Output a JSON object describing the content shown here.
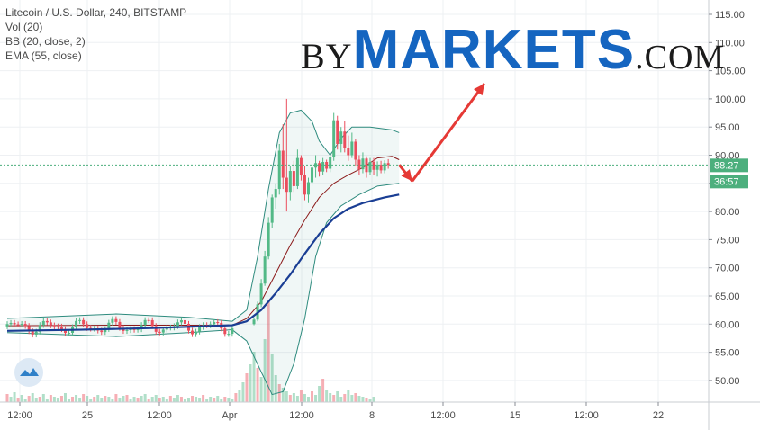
{
  "header": {
    "symbol_line": "Litecoin / U.S. Dollar, 240, BITSTAMP",
    "volume_line": "Vol (20)",
    "bollinger_line": "BB (20, close, 2)",
    "ema_line": "EMA (55, close)"
  },
  "watermark": {
    "by": "BY",
    "markets": "MARKETS",
    "com": ".COM"
  },
  "chart_data": {
    "type": "candlestick",
    "y_axis": {
      "range": [
        46.5,
        116
      ],
      "ticks": [
        115,
        110,
        105,
        100,
        95,
        90,
        85,
        80,
        75,
        70,
        65,
        60,
        55,
        50
      ],
      "tick_labels": [
        "115.00",
        "110.00",
        "105.00",
        "100.00",
        "95.00",
        "90.00",
        "85.00",
        "80.00",
        "75.00",
        "70.00",
        "65.00",
        "60.00",
        "55.00",
        "50.00"
      ]
    },
    "x_axis": {
      "tick_labels": [
        "12:00",
        "25",
        "12:00",
        "Apr",
        "12:00",
        "8",
        "12:00",
        "15",
        "12:00",
        "22"
      ]
    },
    "current_price": {
      "value": 88.27,
      "label": "88.27",
      "countdown": "36:57"
    },
    "colors": {
      "up": "#53b987",
      "down": "#eb4d5c",
      "ema": "#1a3e94",
      "basis": "#8b1a1a",
      "band": "#2e8b7e",
      "arrow": "#e53935",
      "price_tag": "#4caf7d"
    },
    "forecast_arrow": {
      "from": {
        "x": 108,
        "y": 88.3
      },
      "via": {
        "x": 111.6,
        "y": 85.4
      },
      "to": {
        "x": 131.5,
        "y": 102.7
      }
    },
    "pre_rally": [
      {
        "x": 2,
        "c": 59.8
      },
      {
        "x": 8,
        "c": 58.9
      },
      {
        "x": 14,
        "c": 60.2
      },
      {
        "x": 20,
        "c": 59.1
      },
      {
        "x": 26,
        "c": 59.9
      },
      {
        "x": 32,
        "c": 58.3
      },
      {
        "x": 38,
        "c": 59.5
      },
      {
        "x": 44,
        "c": 60.7
      },
      {
        "x": 50,
        "c": 60.0
      },
      {
        "x": 56,
        "c": 59.6
      },
      {
        "x": 62,
        "c": 60.3
      }
    ],
    "rally_candles": [
      {
        "o": 60.0,
        "h": 61.2,
        "l": 59.8,
        "c": 60.8
      },
      {
        "o": 60.8,
        "h": 64.0,
        "l": 60.5,
        "c": 63.5
      },
      {
        "o": 63.5,
        "h": 68.0,
        "l": 63.0,
        "c": 67.2
      },
      {
        "o": 67.2,
        "h": 73.0,
        "l": 66.8,
        "c": 72.0
      },
      {
        "o": 72.0,
        "h": 79.0,
        "l": 71.5,
        "c": 78.0
      },
      {
        "o": 78.0,
        "h": 83.0,
        "l": 77.0,
        "c": 82.5
      },
      {
        "o": 82.5,
        "h": 85.0,
        "l": 80.5,
        "c": 84.0
      },
      {
        "o": 84.0,
        "h": 92.0,
        "l": 83.0,
        "c": 90.8
      },
      {
        "o": 90.8,
        "h": 95.5,
        "l": 84.0,
        "c": 86.0
      },
      {
        "o": 86.0,
        "h": 100.0,
        "l": 80.0,
        "c": 83.5
      },
      {
        "o": 83.5,
        "h": 88.0,
        "l": 82.0,
        "c": 87.2
      },
      {
        "o": 87.2,
        "h": 89.0,
        "l": 83.5,
        "c": 84.5
      },
      {
        "o": 84.5,
        "h": 91.0,
        "l": 84.0,
        "c": 89.5
      },
      {
        "o": 89.5,
        "h": 90.0,
        "l": 85.5,
        "c": 86.5
      },
      {
        "o": 86.5,
        "h": 88.0,
        "l": 82.0,
        "c": 83.0
      },
      {
        "o": 83.0,
        "h": 86.0,
        "l": 81.5,
        "c": 85.2
      },
      {
        "o": 85.2,
        "h": 88.5,
        "l": 84.5,
        "c": 87.8
      },
      {
        "o": 87.8,
        "h": 90.0,
        "l": 86.0,
        "c": 88.6
      },
      {
        "o": 88.6,
        "h": 89.0,
        "l": 86.2,
        "c": 87.1
      },
      {
        "o": 87.1,
        "h": 89.5,
        "l": 86.5,
        "c": 88.8
      },
      {
        "o": 88.8,
        "h": 89.2,
        "l": 87.0,
        "c": 87.6
      },
      {
        "o": 87.6,
        "h": 90.5,
        "l": 87.0,
        "c": 89.6
      },
      {
        "o": 89.6,
        "h": 97.5,
        "l": 89.0,
        "c": 96.2
      },
      {
        "o": 96.2,
        "h": 97.0,
        "l": 91.0,
        "c": 92.0
      },
      {
        "o": 92.0,
        "h": 95.0,
        "l": 90.5,
        "c": 94.2
      },
      {
        "o": 94.2,
        "h": 96.0,
        "l": 90.5,
        "c": 91.3
      },
      {
        "o": 91.3,
        "h": 93.5,
        "l": 89.0,
        "c": 90.0
      },
      {
        "o": 90.0,
        "h": 94.0,
        "l": 89.5,
        "c": 92.4
      },
      {
        "o": 92.4,
        "h": 92.8,
        "l": 88.0,
        "c": 89.2
      },
      {
        "o": 89.2,
        "h": 90.0,
        "l": 86.5,
        "c": 87.5
      },
      {
        "o": 87.5,
        "h": 90.5,
        "l": 86.8,
        "c": 89.4
      },
      {
        "o": 89.4,
        "h": 89.8,
        "l": 86.0,
        "c": 87.0
      },
      {
        "o": 87.0,
        "h": 89.5,
        "l": 86.5,
        "c": 88.8
      },
      {
        "o": 88.8,
        "h": 89.5,
        "l": 86.5,
        "c": 87.4
      },
      {
        "o": 87.4,
        "h": 88.9,
        "l": 86.2,
        "c": 88.3
      },
      {
        "o": 88.3,
        "h": 89.0,
        "l": 86.8,
        "c": 87.3
      },
      {
        "o": 87.3,
        "h": 89.1,
        "l": 86.8,
        "c": 88.6
      },
      {
        "o": 88.6,
        "h": 89.3,
        "l": 87.6,
        "c": 88.27
      }
    ],
    "bb_upper": [
      {
        "x": 0,
        "y": 61.0
      },
      {
        "x": 30,
        "y": 61.8
      },
      {
        "x": 50,
        "y": 61.2
      },
      {
        "x": 62,
        "y": 60.5
      },
      {
        "x": 66,
        "y": 62.5
      },
      {
        "x": 69,
        "y": 72
      },
      {
        "x": 72,
        "y": 84
      },
      {
        "x": 75,
        "y": 94
      },
      {
        "x": 78,
        "y": 97.5
      },
      {
        "x": 81,
        "y": 98.0
      },
      {
        "x": 84,
        "y": 96.0
      },
      {
        "x": 86,
        "y": 92.5
      },
      {
        "x": 89,
        "y": 90.0
      },
      {
        "x": 92,
        "y": 93.0
      },
      {
        "x": 95,
        "y": 95.0
      },
      {
        "x": 100,
        "y": 95.0
      },
      {
        "x": 106,
        "y": 94.5
      },
      {
        "x": 108,
        "y": 94.0
      }
    ],
    "bb_basis": [
      {
        "x": 0,
        "y": 59.7
      },
      {
        "x": 30,
        "y": 59.8
      },
      {
        "x": 62,
        "y": 59.8
      },
      {
        "x": 66,
        "y": 61.0
      },
      {
        "x": 70,
        "y": 64.0
      },
      {
        "x": 74,
        "y": 69.0
      },
      {
        "x": 78,
        "y": 74.0
      },
      {
        "x": 82,
        "y": 78.5
      },
      {
        "x": 86,
        "y": 82.5
      },
      {
        "x": 90,
        "y": 85.0
      },
      {
        "x": 94,
        "y": 86.5
      },
      {
        "x": 98,
        "y": 87.8
      },
      {
        "x": 102,
        "y": 89.5
      },
      {
        "x": 106,
        "y": 89.8
      },
      {
        "x": 108,
        "y": 89.2
      }
    ],
    "bb_lower": [
      {
        "x": 0,
        "y": 58.5
      },
      {
        "x": 30,
        "y": 57.8
      },
      {
        "x": 50,
        "y": 58.5
      },
      {
        "x": 62,
        "y": 59.0
      },
      {
        "x": 66,
        "y": 57.0
      },
      {
        "x": 70,
        "y": 51.5
      },
      {
        "x": 73,
        "y": 47.5
      },
      {
        "x": 76,
        "y": 48.0
      },
      {
        "x": 79,
        "y": 53.0
      },
      {
        "x": 82,
        "y": 61.0
      },
      {
        "x": 85,
        "y": 72.0
      },
      {
        "x": 88,
        "y": 78.0
      },
      {
        "x": 92,
        "y": 81.0
      },
      {
        "x": 97,
        "y": 83.0
      },
      {
        "x": 102,
        "y": 84.5
      },
      {
        "x": 108,
        "y": 85.0
      }
    ],
    "ema": [
      {
        "x": 0,
        "y": 58.8
      },
      {
        "x": 20,
        "y": 59.0
      },
      {
        "x": 40,
        "y": 59.3
      },
      {
        "x": 62,
        "y": 59.8
      },
      {
        "x": 66,
        "y": 60.5
      },
      {
        "x": 70,
        "y": 62.5
      },
      {
        "x": 74,
        "y": 65.5
      },
      {
        "x": 78,
        "y": 68.8
      },
      {
        "x": 82,
        "y": 72.5
      },
      {
        "x": 86,
        "y": 76.0
      },
      {
        "x": 90,
        "y": 78.8
      },
      {
        "x": 94,
        "y": 80.5
      },
      {
        "x": 98,
        "y": 81.5
      },
      {
        "x": 104,
        "y": 82.5
      },
      {
        "x": 108,
        "y": 83.0
      }
    ]
  }
}
